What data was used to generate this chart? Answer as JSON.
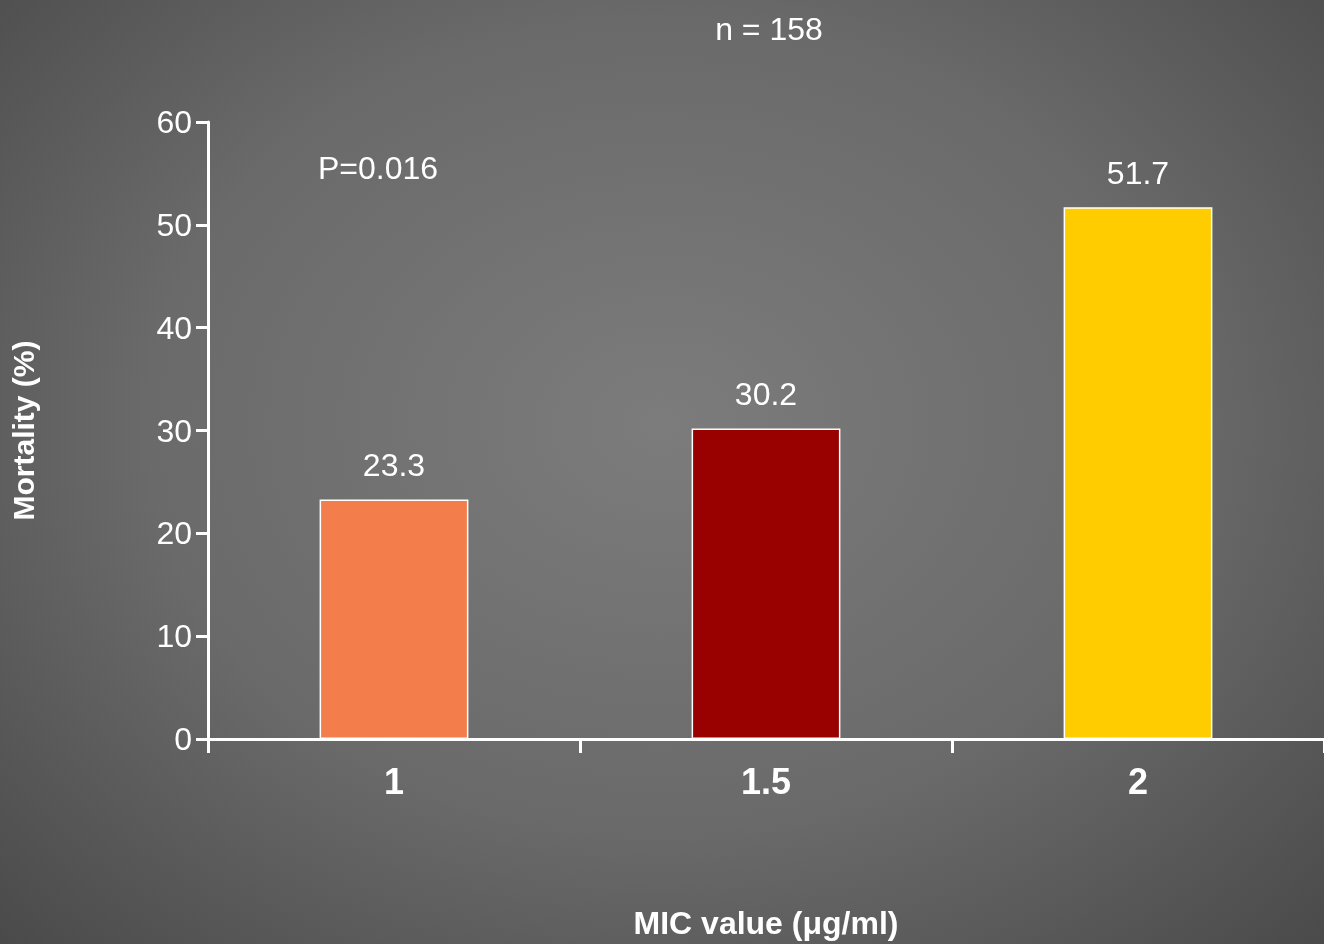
{
  "chart_data": {
    "type": "bar",
    "title": "n = 158",
    "xlabel": "MIC value (μg/ml)",
    "ylabel": "Mortality (%)",
    "categories": [
      "1",
      "1.5",
      "2"
    ],
    "values": [
      23.3,
      30.2,
      51.7
    ],
    "colors": [
      "#f47e4b",
      "#990000",
      "#ffcc00"
    ],
    "ylim": [
      0,
      60
    ],
    "yticks": [
      0,
      10,
      20,
      30,
      40,
      50,
      60
    ],
    "data_labels": true,
    "grid": false,
    "annotations": [
      "P=0.016"
    ]
  }
}
